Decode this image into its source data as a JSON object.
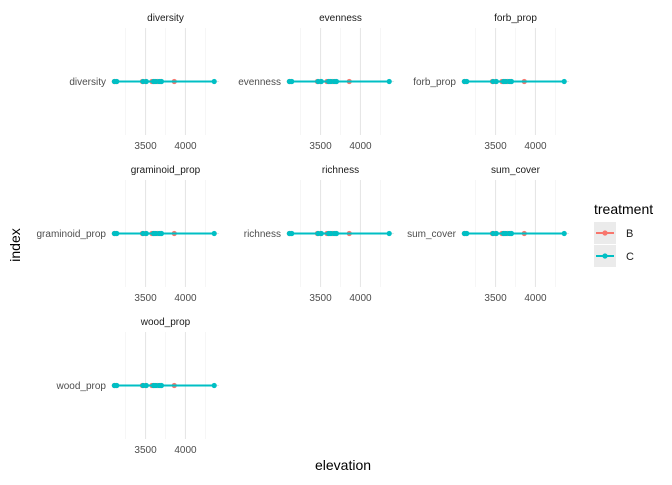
{
  "chart_data": {
    "type": "line",
    "xlabel": "elevation",
    "ylabel": "index",
    "xlim": [
      3080,
      4420
    ],
    "x_ticks": [
      3500,
      4000
    ],
    "x_tick_labels": [
      "3500",
      "4000"
    ],
    "grid": true,
    "legend": {
      "title": "treatment",
      "position": "right",
      "entries": [
        {
          "label": "B",
          "color": "#F8766D"
        },
        {
          "label": "C",
          "color": "#00BFC4"
        }
      ]
    },
    "colors": {
      "B": "#F8766D",
      "C": "#00BFC4"
    },
    "panels": [
      {
        "title": "diversity",
        "y_category": "diversity"
      },
      {
        "title": "evenness",
        "y_category": "evenness"
      },
      {
        "title": "forb_prop",
        "y_category": "forb_prop"
      },
      {
        "title": "graminoid_prop",
        "y_category": "graminoid_prop"
      },
      {
        "title": "richness",
        "y_category": "richness"
      },
      {
        "title": "sum_cover",
        "y_category": "sum_cover"
      },
      {
        "title": "wood_prop",
        "y_category": "wood_prop"
      }
    ],
    "series": [
      {
        "name": "B",
        "x": [
          3110,
          3130,
          3460,
          3500,
          3580,
          3610,
          3650,
          3690,
          3860
        ]
      },
      {
        "name": "C",
        "x": [
          3110,
          3140,
          3470,
          3510,
          3600,
          3630,
          3670,
          3700,
          4360
        ]
      }
    ]
  }
}
